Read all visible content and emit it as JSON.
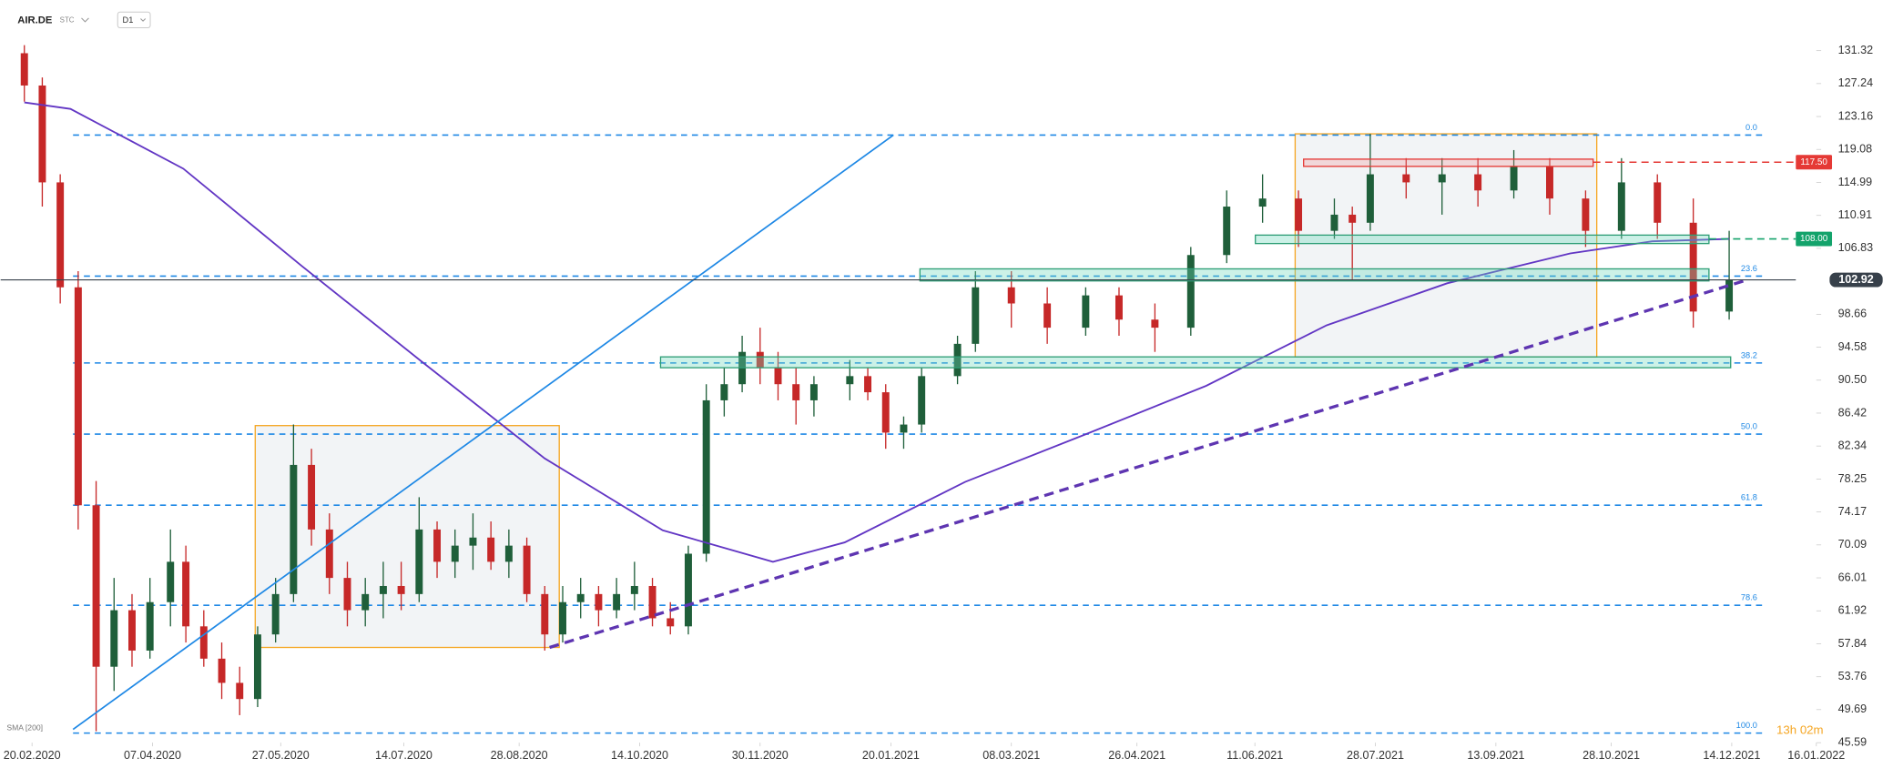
{
  "chart_data": {
    "type": "candlestick",
    "title": "AIR.DE",
    "market_label": "STC",
    "interval": "D1",
    "countdown": "13h 02m",
    "up_color": "#1f5f3a",
    "down_color": "#c62828",
    "x": [
      "17.02.2020",
      "24.02.2020",
      "02.03.2020",
      "09.03.2020",
      "16.03.2020",
      "23.03.2020",
      "30.03.2020",
      "06.04.2020",
      "14.04.2020",
      "20.04.2020",
      "27.04.2020",
      "04.05.2020",
      "11.05.2020",
      "18.05.2020",
      "25.05.2020",
      "01.06.2020",
      "08.06.2020",
      "15.06.2020",
      "22.06.2020",
      "29.06.2020",
      "06.07.2020",
      "13.07.2020",
      "20.07.2020",
      "27.07.2020",
      "03.08.2020",
      "10.08.2020",
      "17.08.2020",
      "24.08.2020",
      "31.08.2020",
      "07.09.2020",
      "14.09.2020",
      "21.09.2020",
      "28.09.2020",
      "05.10.2020",
      "12.10.2020",
      "19.10.2020",
      "26.10.2020",
      "02.11.2020",
      "09.11.2020",
      "16.11.2020",
      "23.11.2020",
      "30.11.2020",
      "07.12.2020",
      "14.12.2020",
      "21.12.2020",
      "04.01.2021",
      "11.01.2021",
      "18.01.2021",
      "25.01.2021",
      "01.02.2021",
      "15.02.2021",
      "22.02.2021",
      "08.03.2021",
      "22.03.2021",
      "06.04.2021",
      "19.04.2021",
      "03.05.2021",
      "17.05.2021",
      "31.05.2021",
      "14.06.2021",
      "28.06.2021",
      "12.07.2021",
      "19.07.2021",
      "26.07.2021",
      "09.08.2021",
      "23.08.2021",
      "06.09.2021",
      "20.09.2021",
      "04.10.2021",
      "18.10.2021",
      "01.11.2021",
      "15.11.2021",
      "29.11.2021",
      "13.12.2021"
    ],
    "open": [
      131,
      127,
      115,
      102,
      75,
      55,
      62,
      57,
      63,
      68,
      60,
      56,
      53,
      51,
      59,
      64,
      80,
      72,
      66,
      62,
      64,
      65,
      64,
      72,
      68,
      70,
      71,
      68,
      70,
      64,
      59,
      63,
      64,
      62,
      64,
      65,
      61,
      60,
      69,
      88,
      90,
      94,
      92,
      90,
      88,
      90,
      91,
      89,
      84,
      85,
      91,
      95,
      102,
      100,
      97,
      101,
      98,
      97,
      106,
      112,
      113,
      109,
      111,
      110,
      116,
      115,
      116,
      114,
      117,
      113,
      109,
      115,
      110,
      99
    ],
    "high": [
      132,
      128,
      116,
      104,
      78,
      66,
      64,
      66,
      72,
      70,
      62,
      58,
      55,
      60,
      66,
      85,
      82,
      74,
      68,
      66,
      68,
      68,
      76,
      73,
      72,
      74,
      73,
      72,
      71,
      65,
      65,
      66,
      65,
      66,
      68,
      66,
      63,
      70,
      90,
      92,
      96,
      97,
      94,
      92,
      91,
      93,
      92,
      90,
      86,
      92,
      96,
      104,
      104,
      102,
      102,
      102,
      100,
      107,
      114,
      116,
      114,
      113,
      112,
      121,
      118,
      118,
      118,
      119,
      118,
      114,
      118,
      116,
      113,
      109
    ],
    "low": [
      125,
      112,
      100,
      72,
      47,
      52,
      55,
      56,
      60,
      58,
      55,
      51,
      49,
      50,
      58,
      63,
      70,
      64,
      60,
      60,
      61,
      62,
      63,
      66,
      66,
      67,
      67,
      66,
      63,
      57,
      58,
      61,
      60,
      61,
      62,
      60,
      59,
      59,
      68,
      86,
      89,
      90,
      88,
      85,
      86,
      88,
      88,
      82,
      82,
      84,
      90,
      94,
      97,
      95,
      96,
      96,
      94,
      96,
      105,
      110,
      107,
      108,
      103,
      109,
      113,
      111,
      112,
      113,
      111,
      107,
      108,
      108,
      97,
      98
    ],
    "close": [
      127,
      115,
      102,
      75,
      55,
      62,
      57,
      63,
      68,
      60,
      56,
      53,
      51,
      59,
      64,
      80,
      72,
      66,
      62,
      64,
      65,
      64,
      72,
      68,
      70,
      71,
      68,
      70,
      64,
      59,
      63,
      64,
      62,
      64,
      65,
      61,
      60,
      69,
      88,
      90,
      94,
      92,
      90,
      88,
      90,
      91,
      89,
      84,
      85,
      91,
      95,
      102,
      100,
      97,
      101,
      98,
      97,
      106,
      112,
      113,
      109,
      111,
      110,
      116,
      115,
      116,
      114,
      117,
      113,
      109,
      115,
      110,
      99,
      102.92
    ],
    "series": [
      {
        "name": "SMA [200]",
        "color": "#6236c4",
        "x": [
          "17.02.2020",
          "06.03.2020",
          "19.04.2020",
          "04.06.2020",
          "21.07.2020",
          "07.09.2020",
          "23.10.2020",
          "05.12.2020",
          "02.01.2021",
          "18.02.2021",
          "06.04.2021",
          "23.05.2021",
          "09.07.2021",
          "25.08.2021",
          "12.10.2021",
          "13.11.2021",
          "13.12.2021"
        ],
        "values": [
          124.9,
          124.1,
          116.7,
          104.7,
          92.8,
          80.8,
          71.9,
          68.0,
          70.4,
          77.9,
          83.8,
          89.8,
          97.3,
          102.5,
          106.2,
          107.7,
          108.0
        ]
      }
    ],
    "xlim": [
      "20.02.2020",
      "16.01.2022"
    ],
    "xticks": [
      "20.02.2020",
      "07.04.2020",
      "27.05.2020",
      "14.07.2020",
      "28.08.2020",
      "14.10.2020",
      "30.11.2020",
      "20.01.2021",
      "08.03.2021",
      "26.04.2021",
      "11.06.2021",
      "28.07.2021",
      "13.09.2021",
      "28.10.2021",
      "14.12.2021",
      "16.01.2022"
    ],
    "ylim": [
      45.59,
      131.32
    ],
    "yticks": [
      131.32,
      127.24,
      123.16,
      119.08,
      114.99,
      110.91,
      106.83,
      98.66,
      94.58,
      {
        "value": 90.5,
        "label": "90.50"
      },
      86.42,
      82.34,
      78.25,
      74.17,
      70.09,
      66.01,
      61.92,
      57.84,
      53.76,
      49.69,
      45.59
    ],
    "fib_levels": [
      {
        "label": "0.0",
        "price": 120.86
      },
      {
        "label": "23.6",
        "price": 103.39
      },
      {
        "label": "38.2",
        "price": 92.63
      },
      {
        "label": "50.0",
        "price": 83.82
      },
      {
        "label": "61.8",
        "price": 75.01
      },
      {
        "label": "78.6",
        "price": 62.61
      },
      {
        "label": "100.0",
        "price": 46.78
      }
    ],
    "price_labels": [
      {
        "value": 117.5,
        "label": "117.50",
        "color": "#e53935"
      },
      {
        "value": 108,
        "label": "108.00",
        "color": "#13a36b"
      },
      {
        "value": 102.92,
        "label": "102.92",
        "color": "#37404a"
      }
    ]
  }
}
